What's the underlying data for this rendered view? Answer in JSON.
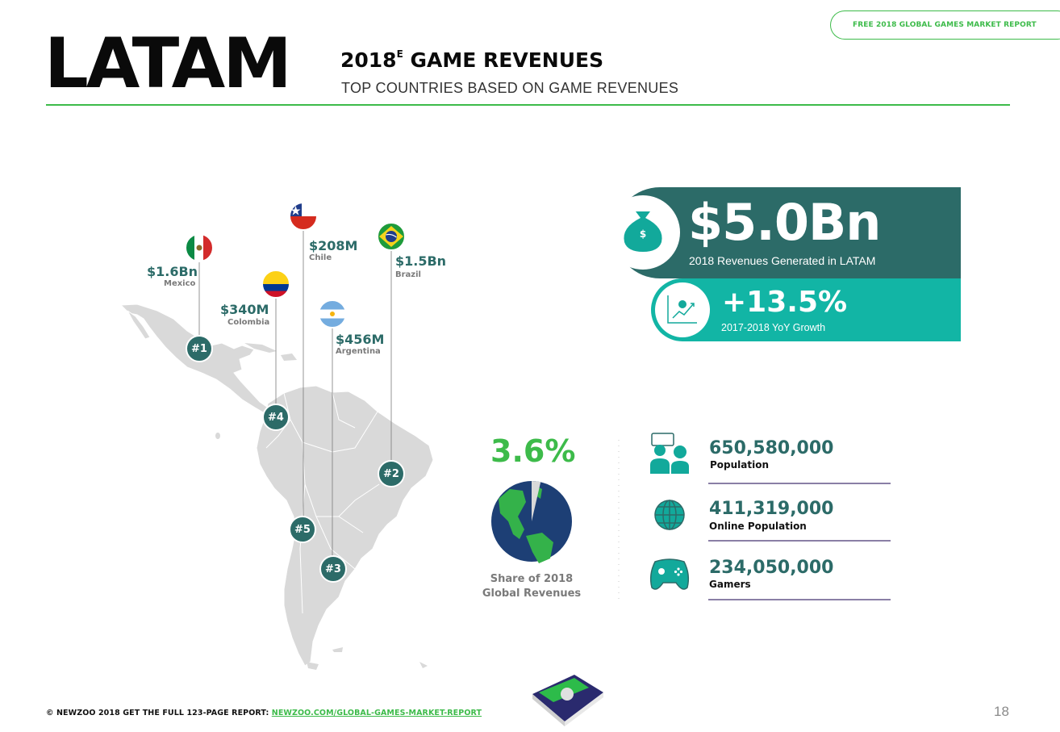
{
  "header": {
    "badge": "FREE 2018 GLOBAL GAMES MARKET REPORT",
    "region": "LATAM",
    "title_year": "2018",
    "title_sup": "E",
    "title_rest": " GAME REVENUES",
    "subtitle": "TOP COUNTRIES BASED ON GAME REVENUES"
  },
  "countries": [
    {
      "rank": "#1",
      "name": "Mexico",
      "revenue": "$1.6Bn"
    },
    {
      "rank": "#2",
      "name": "Brazil",
      "revenue": "$1.5Bn"
    },
    {
      "rank": "#3",
      "name": "Argentina",
      "revenue": "$456M"
    },
    {
      "rank": "#4",
      "name": "Colombia",
      "revenue": "$340M"
    },
    {
      "rank": "#5",
      "name": "Chile",
      "revenue": "$208M"
    }
  ],
  "headline": {
    "revenue": "$5.0Bn",
    "revenue_caption": "2018 Revenues Generated in LATAM",
    "growth": "+13.5%",
    "growth_caption": "2017-2018 YoY Growth"
  },
  "share": {
    "value": "3.6%",
    "fraction": 0.036,
    "caption_line1": "Share of 2018",
    "caption_line2": "Global Revenues"
  },
  "stats": [
    {
      "value": "650,580,000",
      "label": "Population",
      "icon": "people-icon"
    },
    {
      "value": "411,319,000",
      "label": "Online Population",
      "icon": "globe-icon"
    },
    {
      "value": "234,050,000",
      "label": "Gamers",
      "icon": "gamepad-icon"
    }
  ],
  "footer": {
    "copyright": "© NEWZOO 2018  GET THE FULL 123-PAGE REPORT: ",
    "link": "NEWZOO.COM/GLOBAL-GAMES-MARKET-REPORT",
    "page": "18"
  },
  "colors": {
    "teal_dark": "#2c6b68",
    "teal_light": "#12b5a5",
    "green": "#3dbb4a",
    "purple_rule": "#8a7fa6",
    "map_grey": "#d9d9d9"
  }
}
